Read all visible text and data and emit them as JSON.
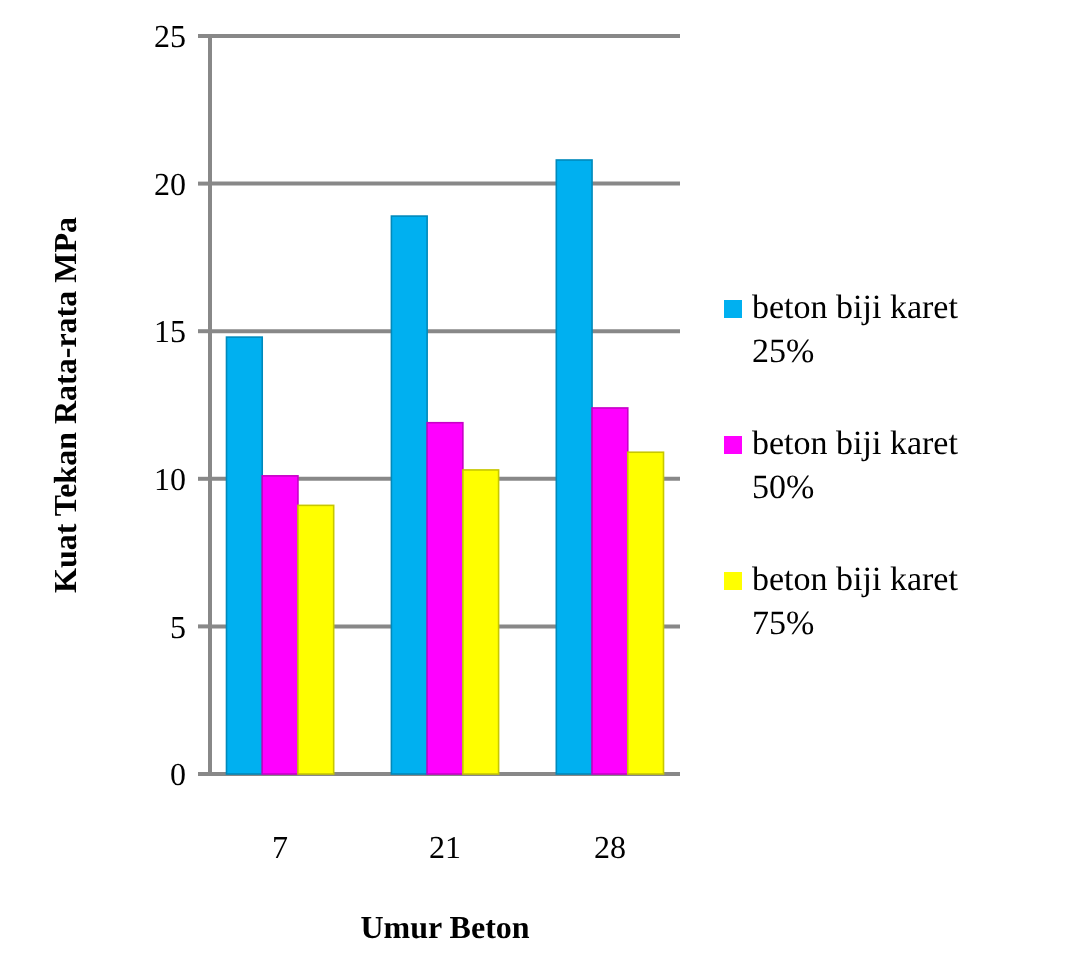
{
  "chart_data": {
    "type": "bar",
    "xlabel": "Umur Beton",
    "ylabel": "Kuat Tekan Rata-rata MPa",
    "categories": [
      "7",
      "21",
      "28"
    ],
    "series": [
      {
        "name": "beton biji karet 25%",
        "color": "#00b0f0",
        "values": [
          14.8,
          18.9,
          20.8
        ]
      },
      {
        "name": "beton biji karet 50%",
        "color": "#ff00ff",
        "values": [
          10.1,
          11.9,
          12.4
        ]
      },
      {
        "name": "beton biji karet 75%",
        "color": "#ffff00",
        "values": [
          9.1,
          10.3,
          10.9
        ]
      }
    ],
    "ylim": [
      0,
      25
    ],
    "yticks": [
      0,
      5,
      10,
      15,
      20,
      25
    ],
    "grid": "y",
    "legend": "right"
  }
}
